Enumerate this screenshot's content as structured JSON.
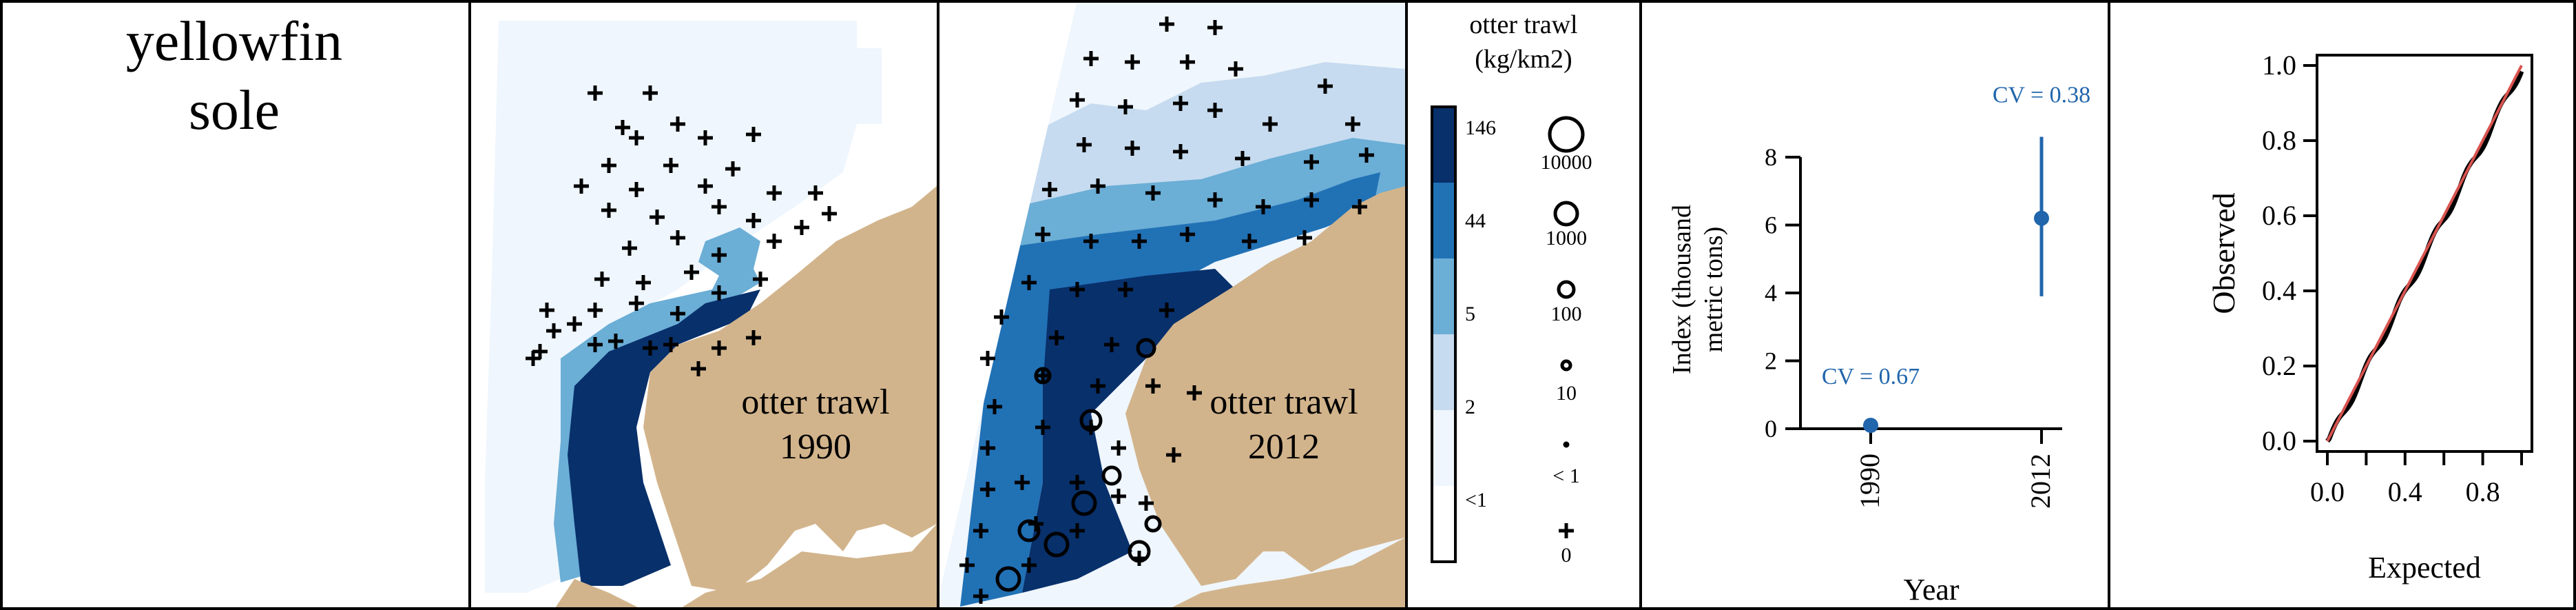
{
  "species": {
    "line1": "yellowfin",
    "line2": "sole"
  },
  "maps": [
    {
      "gear": "otter trawl",
      "year": "1990"
    },
    {
      "gear": "otter trawl",
      "year": "2012"
    }
  ],
  "legend": {
    "title_line1": "otter trawl",
    "title_line2": "(kg/km2)",
    "color_breaks": [
      "146",
      "44",
      "5",
      "2",
      "<1"
    ],
    "bubble_labels": [
      "10000",
      "1000",
      "100",
      "10",
      "< 1",
      "0"
    ],
    "colors": [
      "#08306b",
      "#2171b5",
      "#6baed6",
      "#c6dbef",
      "#eff6fd",
      "#ffffff"
    ]
  },
  "colors": {
    "land": "#d2b48c",
    "point": "#2166ac",
    "ref_line": "#d9534f"
  },
  "chart_data": [
    {
      "type": "scatter",
      "title": "",
      "xlabel": "Year",
      "ylabel_line1": "Index (thousand",
      "ylabel_line2": "metric tons)",
      "categories": [
        "1990",
        "2012"
      ],
      "series": [
        {
          "values": [
            0.1,
            6.2
          ],
          "lower": [
            0.0,
            3.9
          ],
          "upper": [
            0.3,
            8.6
          ]
        }
      ],
      "annotations": [
        "CV = 0.67",
        "CV = 0.38"
      ],
      "yticks": [
        "0",
        "2",
        "4",
        "6",
        "8"
      ],
      "ylim": [
        0,
        8
      ]
    },
    {
      "type": "line",
      "title": "",
      "xlabel": "Expected",
      "ylabel": "Observed",
      "xlim": [
        0,
        1
      ],
      "ylim": [
        0,
        1
      ],
      "xticks": [
        "0.0",
        "0.4",
        "0.8"
      ],
      "yticks": [
        "0.0",
        "0.2",
        "0.4",
        "0.6",
        "0.8",
        "1.0"
      ]
    }
  ]
}
